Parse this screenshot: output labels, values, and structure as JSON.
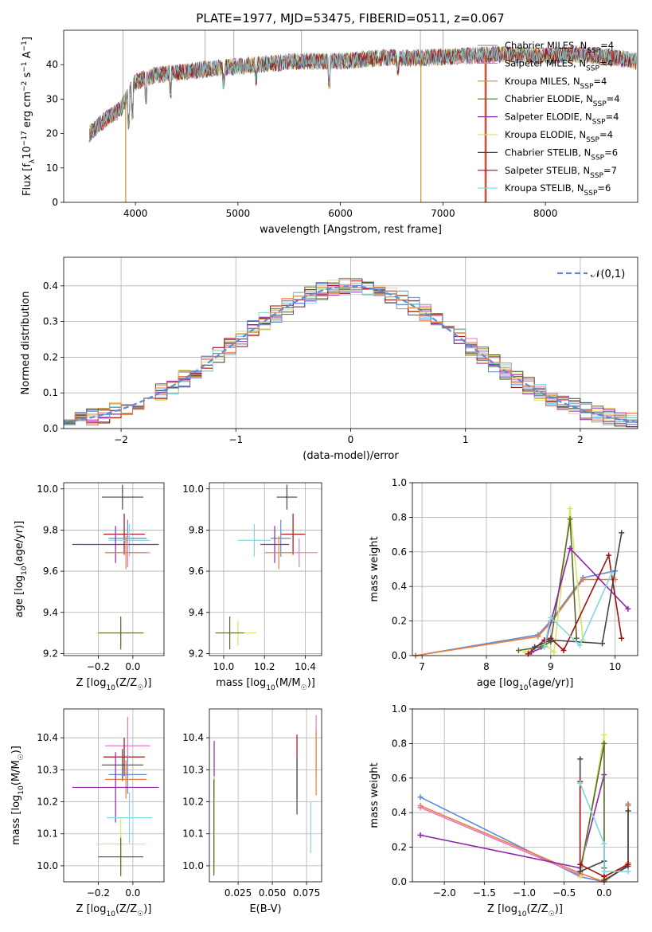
{
  "figure_title": "PLATE=1977, MJD=53475, FIBERID=0511, z=0.067",
  "chart_data": [
    {
      "id": "spectrum",
      "type": "line",
      "xlabel": "wavelength [Angstrom, rest frame]",
      "ylabel": "Flux [f_λ 10^-17 erg cm^-2 s^-1 A^-1]",
      "xlim": [
        3300,
        8900
      ],
      "ylim": [
        0,
        50
      ],
      "xticks": [
        4000,
        5000,
        6000,
        7000,
        8000
      ],
      "yticks": [
        0,
        10,
        20,
        30,
        40
      ],
      "legend_position": "top-right",
      "continuum_points": [
        [
          3550,
          20
        ],
        [
          3700,
          24
        ],
        [
          3850,
          27
        ],
        [
          4000,
          35
        ],
        [
          4200,
          37
        ],
        [
          4500,
          38
        ],
        [
          4800,
          39
        ],
        [
          5200,
          40
        ],
        [
          5600,
          41
        ],
        [
          6000,
          41
        ],
        [
          6400,
          42
        ],
        [
          6800,
          42
        ],
        [
          7200,
          42.5
        ],
        [
          7600,
          43
        ],
        [
          8000,
          42.5
        ],
        [
          8300,
          43
        ],
        [
          8700,
          42
        ],
        [
          8890,
          41
        ]
      ],
      "series": [
        {
          "name": "Chabrier MILES, N_SSP=4",
          "color": "#9a9a9a"
        },
        {
          "name": "Salpeter MILES, N_SSP=4",
          "color": "#e07ac0"
        },
        {
          "name": "Kroupa MILES, N_SSP=4",
          "color": "#c8922a"
        },
        {
          "name": "Chabrier ELODIE, N_SSP=4",
          "color": "#556b2f"
        },
        {
          "name": "Salpeter ELODIE, N_SSP=4",
          "color": "#8e24aa"
        },
        {
          "name": "Kroupa ELODIE, N_SSP=4",
          "color": "#dbe36a"
        },
        {
          "name": "Chabrier STELIB, N_SSP=6",
          "color": "#444444"
        },
        {
          "name": "Salpeter STELIB, N_SSP=7",
          "color": "#a50f15"
        },
        {
          "name": "Kroupa STELIB, N_SSP=6",
          "color": "#7fd8e0"
        }
      ]
    },
    {
      "id": "residuals",
      "type": "histogram",
      "xlabel": "(data-model)/error",
      "ylabel": "Normed distribution",
      "xlim": [
        -2.5,
        2.5
      ],
      "ylim": [
        0,
        0.48
      ],
      "xticks": [
        -2,
        -1,
        0,
        1,
        2
      ],
      "yticks": [
        0.0,
        0.1,
        0.2,
        0.3,
        0.4
      ],
      "grid": true,
      "legend_position": "top-right",
      "reference_curve": {
        "label": "𝒩(0,1)",
        "color": "#5b8bd9",
        "style": "dashed",
        "mean": 0,
        "sigma": 1
      },
      "bin_width": 0.1,
      "colors": [
        "#9a9a9a",
        "#e07ac0",
        "#c8922a",
        "#556b2f",
        "#8e24aa",
        "#dbe36a",
        "#444444",
        "#a50f15",
        "#7fd8e0",
        "#5b8bd9",
        "#ef7b3a"
      ]
    },
    {
      "id": "age_vs_Z",
      "type": "errorbar",
      "xlabel": "Z [log10(Z/Z☉)]",
      "ylabel": "age  [log10(age/yr)]",
      "xlim": [
        -0.4,
        0.18
      ],
      "ylim": [
        9.19,
        10.03
      ],
      "xticks": [
        -0.2,
        0.0
      ],
      "yticks": [
        9.2,
        9.4,
        9.6,
        9.8,
        10.0
      ],
      "grid": true,
      "points": [
        {
          "x": -0.06,
          "y": 9.96,
          "xerr": 0.12,
          "yerr": 0.06,
          "color": "#444444"
        },
        {
          "x": -0.05,
          "y": 9.78,
          "xerr": 0.12,
          "yerr": 0.1,
          "color": "#a50f15"
        },
        {
          "x": -0.03,
          "y": 9.76,
          "xerr": 0.11,
          "yerr": 0.09,
          "color": "#5b8bd9"
        },
        {
          "x": -0.02,
          "y": 9.75,
          "xerr": 0.12,
          "yerr": 0.08,
          "color": "#7fd8e0"
        },
        {
          "x": -0.1,
          "y": 9.73,
          "xerr": 0.25,
          "yerr": 0.09,
          "color": "#8e24aa"
        },
        {
          "x": -0.03,
          "y": 9.69,
          "xerr": 0.13,
          "yerr": 0.07,
          "color": "#e07ac0"
        },
        {
          "x": -0.04,
          "y": 9.69,
          "xerr": 0.12,
          "yerr": 0.08,
          "color": "#ef7b3a"
        },
        {
          "x": -0.07,
          "y": 9.3,
          "xerr": 0.14,
          "yerr": 0.06,
          "color": "#dbe36a"
        },
        {
          "x": -0.07,
          "y": 9.3,
          "xerr": 0.13,
          "yerr": 0.08,
          "color": "#556b2f"
        }
      ]
    },
    {
      "id": "age_vs_mass",
      "type": "errorbar",
      "xlabel": "mass [log10(M/M☉)]",
      "ylabel": "",
      "xlim": [
        9.93,
        10.48
      ],
      "ylim": [
        9.19,
        10.03
      ],
      "xticks": [
        10.0,
        10.2,
        10.4
      ],
      "yticks": [
        9.2,
        9.4,
        9.6,
        9.8,
        10.0
      ],
      "grid": true,
      "points": [
        {
          "x": 10.31,
          "y": 9.96,
          "xerr": 0.05,
          "yerr": 0.06,
          "color": "#444444"
        },
        {
          "x": 10.34,
          "y": 9.78,
          "xerr": 0.06,
          "yerr": 0.1,
          "color": "#a50f15"
        },
        {
          "x": 10.28,
          "y": 9.76,
          "xerr": 0.05,
          "yerr": 0.09,
          "color": "#5b8bd9"
        },
        {
          "x": 10.15,
          "y": 9.75,
          "xerr": 0.08,
          "yerr": 0.08,
          "color": "#7fd8e0"
        },
        {
          "x": 10.25,
          "y": 9.73,
          "xerr": 0.07,
          "yerr": 0.09,
          "color": "#8e24aa"
        },
        {
          "x": 10.37,
          "y": 9.69,
          "xerr": 0.09,
          "yerr": 0.07,
          "color": "#e07ac0"
        },
        {
          "x": 10.27,
          "y": 9.69,
          "xerr": 0.07,
          "yerr": 0.08,
          "color": "#ef7b3a"
        },
        {
          "x": 10.07,
          "y": 9.3,
          "xerr": 0.09,
          "yerr": 0.06,
          "color": "#dbe36a"
        },
        {
          "x": 10.03,
          "y": 9.3,
          "xerr": 0.07,
          "yerr": 0.08,
          "color": "#556b2f"
        }
      ]
    },
    {
      "id": "weight_vs_age",
      "type": "line",
      "xlabel": "age  [log10(age/yr)]",
      "ylabel": "mass weight",
      "xlim": [
        6.85,
        10.35
      ],
      "ylim": [
        0,
        1
      ],
      "xticks": [
        7,
        8,
        9,
        10
      ],
      "yticks": [
        0.0,
        0.2,
        0.4,
        0.6,
        0.8,
        1.0
      ],
      "grid": true,
      "series": [
        {
          "color": "#5b8bd9",
          "x": [
            6.9,
            8.8,
            9.0,
            9.5,
            10.0
          ],
          "y": [
            0.0,
            0.12,
            0.2,
            0.45,
            0.49
          ]
        },
        {
          "color": "#ef7b3a",
          "x": [
            6.9,
            8.8,
            9.0,
            9.5,
            10.0
          ],
          "y": [
            0.0,
            0.11,
            0.19,
            0.44,
            0.44
          ]
        },
        {
          "color": "#dbe36a",
          "x": [
            8.6,
            8.9,
            9.05,
            9.3,
            9.5
          ],
          "y": [
            0.02,
            0.07,
            0.02,
            0.85,
            0.09
          ]
        },
        {
          "color": "#556b2f",
          "x": [
            8.5,
            8.85,
            9.0,
            9.3,
            9.4
          ],
          "y": [
            0.03,
            0.05,
            0.08,
            0.79,
            0.1
          ]
        },
        {
          "color": "#8e24aa",
          "x": [
            8.7,
            8.9,
            9.3,
            10.2
          ],
          "y": [
            0.02,
            0.05,
            0.62,
            0.27
          ]
        },
        {
          "color": "#a50f15",
          "x": [
            8.65,
            8.9,
            9.0,
            9.2,
            9.9,
            10.1
          ],
          "y": [
            0.01,
            0.09,
            0.1,
            0.03,
            0.58,
            0.1
          ]
        },
        {
          "color": "#444444",
          "x": [
            8.75,
            9.0,
            9.8,
            10.1
          ],
          "y": [
            0.05,
            0.09,
            0.07,
            0.71
          ]
        },
        {
          "color": "#7fd8e0",
          "x": [
            8.9,
            9.0,
            9.45,
            9.95
          ],
          "y": [
            0.05,
            0.22,
            0.06,
            0.48
          ]
        }
      ]
    },
    {
      "id": "mass_vs_Z",
      "type": "errorbar",
      "xlabel": "Z [log10(Z/Z☉)]",
      "ylabel": "mass [log10(M/M☉)]",
      "xlim": [
        -0.4,
        0.18
      ],
      "ylim": [
        9.95,
        10.49
      ],
      "xticks": [
        -0.2,
        0.0
      ],
      "yticks": [
        10.0,
        10.1,
        10.2,
        10.3,
        10.4
      ],
      "grid": true,
      "points": [
        {
          "x": -0.03,
          "y": 10.375,
          "xerr": 0.13,
          "yerr": 0.09,
          "color": "#e07ac0"
        },
        {
          "x": -0.05,
          "y": 10.34,
          "xerr": 0.12,
          "yerr": 0.06,
          "color": "#a50f15"
        },
        {
          "x": -0.06,
          "y": 10.315,
          "xerr": 0.12,
          "yerr": 0.05,
          "color": "#444444"
        },
        {
          "x": -0.03,
          "y": 10.285,
          "xerr": 0.11,
          "yerr": 0.06,
          "color": "#5b8bd9"
        },
        {
          "x": -0.04,
          "y": 10.27,
          "xerr": 0.12,
          "yerr": 0.06,
          "color": "#ef7b3a"
        },
        {
          "x": -0.1,
          "y": 10.245,
          "xerr": 0.25,
          "yerr": 0.11,
          "color": "#8e24aa"
        },
        {
          "x": -0.02,
          "y": 10.15,
          "xerr": 0.13,
          "yerr": 0.08,
          "color": "#7fd8e0"
        },
        {
          "x": -0.07,
          "y": 10.068,
          "xerr": 0.14,
          "yerr": 0.08,
          "color": "#dbe36a"
        },
        {
          "x": -0.07,
          "y": 10.028,
          "xerr": 0.13,
          "yerr": 0.06,
          "color": "#556b2f"
        }
      ]
    },
    {
      "id": "mass_vs_EBV",
      "type": "errorbar",
      "xlabel": "E(B-V)",
      "ylabel": "",
      "xlim": [
        0.004,
        0.086
      ],
      "ylim": [
        9.95,
        10.49
      ],
      "xticks": [
        0.025,
        0.05,
        0.075
      ],
      "xticklabels": [
        "0.025",
        "0.050",
        "0.075"
      ],
      "yticks": [
        10.0,
        10.1,
        10.2,
        10.3,
        10.4
      ],
      "grid": true,
      "points": [
        {
          "x": 0.0075,
          "y": 10.3,
          "xerr": 0,
          "yerr": 0.09,
          "color": "#8e24aa"
        },
        {
          "x": 0.0075,
          "y": 10.13,
          "xerr": 0,
          "yerr": 0.15,
          "color": "#dbe36a"
        },
        {
          "x": 0.0073,
          "y": 10.12,
          "xerr": 0,
          "yerr": 0.15,
          "color": "#556b2f"
        },
        {
          "x": 0.068,
          "y": 10.31,
          "xerr": 0,
          "yerr": 0.1,
          "color": "#a50f15"
        },
        {
          "x": 0.068,
          "y": 10.25,
          "xerr": 0,
          "yerr": 0.09,
          "color": "#444444"
        },
        {
          "x": 0.078,
          "y": 10.12,
          "xerr": 0,
          "yerr": 0.08,
          "color": "#7fd8e0"
        },
        {
          "x": 0.082,
          "y": 10.38,
          "xerr": 0,
          "yerr": 0.09,
          "color": "#e07ac0"
        },
        {
          "x": 0.082,
          "y": 10.32,
          "xerr": 0,
          "yerr": 0.1,
          "color": "#ef7b3a"
        }
      ]
    },
    {
      "id": "weight_vs_Z",
      "type": "line",
      "xlabel": "Z [log10(Z/Z☉)]",
      "ylabel": "mass weight",
      "xlim": [
        -2.4,
        0.42
      ],
      "ylim": [
        0,
        1
      ],
      "xticks": [
        -2.0,
        -1.5,
        -1.0,
        -0.5,
        0.0
      ],
      "yticks": [
        0.0,
        0.2,
        0.4,
        0.6,
        0.8,
        1.0
      ],
      "grid": true,
      "series": [
        {
          "color": "#5b8bd9",
          "x": [
            -2.3,
            -0.3,
            0.0,
            0.3,
            0.3
          ],
          "y": [
            0.49,
            0.03,
            0.0,
            0.1,
            0.45
          ]
        },
        {
          "color": "#ef7b3a",
          "x": [
            -2.3,
            -0.3,
            0.0,
            0.3,
            0.3
          ],
          "y": [
            0.44,
            0.05,
            0.0,
            0.11,
            0.44
          ]
        },
        {
          "color": "#e07ac0",
          "x": [
            -2.3,
            -0.3
          ],
          "y": [
            0.43,
            0.04
          ]
        },
        {
          "color": "#8e24aa",
          "x": [
            -2.3,
            -0.3,
            0.0
          ],
          "y": [
            0.27,
            0.08,
            0.62
          ]
        },
        {
          "color": "#dbe36a",
          "x": [
            -0.3,
            0.0,
            0.0
          ],
          "y": [
            0.03,
            0.85,
            0.02
          ]
        },
        {
          "color": "#556b2f",
          "x": [
            -0.3,
            0.0,
            0.0
          ],
          "y": [
            0.06,
            0.8,
            0.08
          ]
        },
        {
          "color": "#444444",
          "x": [
            -0.3,
            -0.3,
            0.0,
            0.0,
            0.3,
            0.3
          ],
          "y": [
            0.71,
            0.06,
            0.12,
            0.01,
            0.09,
            0.41
          ]
        },
        {
          "color": "#a50f15",
          "x": [
            -0.3,
            -0.3,
            0.0,
            0.3
          ],
          "y": [
            0.58,
            0.1,
            0.03,
            0.1
          ]
        },
        {
          "color": "#7fd8e0",
          "x": [
            -0.3,
            0.0,
            0.0,
            0.3
          ],
          "y": [
            0.57,
            0.22,
            0.06,
            0.06
          ]
        }
      ]
    }
  ]
}
